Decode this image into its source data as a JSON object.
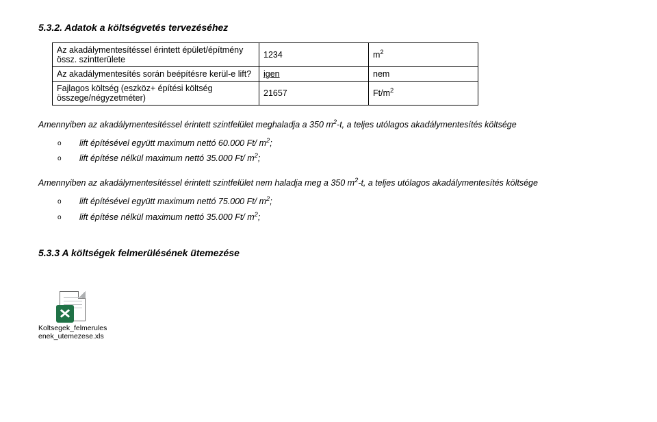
{
  "heading1": "5.3.2. Adatok a költségvetés tervezéséhez",
  "table": {
    "rows": [
      {
        "label": "Az akadálymentesítéssel érintett épület/építmény össz. szintterülete",
        "v1": "1234",
        "v2": "m",
        "v2sup": "2"
      },
      {
        "label": "Az akadálymentesítés során beépítésre kerül-e lift?",
        "v1": "igen",
        "v1_underline": true,
        "v2": "nem"
      },
      {
        "label": "Fajlagos költség (eszköz+ építési költség összege/négyzetméter)",
        "v1": "21657",
        "v2": "Ft/m",
        "v2sup": "2"
      }
    ]
  },
  "para1_a": "Amennyiben az akadálymentesítéssel érintett szintfelület meghaladja a 350 m",
  "para1_b": "-t, a teljes utólagos akadálymentesítés költsége",
  "bullets1": [
    {
      "t": "lift építésével együtt maximum nettó 60.000 Ft/ m",
      "sup": "2",
      "tail": ";"
    },
    {
      "t": "lift építése nélkül maximum nettó 35.000 Ft/ m",
      "sup": "2",
      "tail": ";"
    }
  ],
  "para2_a": "Amennyiben az akadálymentesítéssel érintett szintfelület nem haladja meg a 350 m",
  "para2_b": "-t, a teljes utólagos akadálymentesítés költsége",
  "bullets2": [
    {
      "t": "lift építésével együtt maximum nettó 75.000 Ft/ m",
      "sup": "2",
      "tail": ";"
    },
    {
      "t": "lift építése nélkül maximum nettó 35.000 Ft/ m",
      "sup": "2",
      "tail": ";"
    }
  ],
  "heading2": "5.3.3 A költségek felmerülésének ütemezése",
  "file": {
    "line1": "Koltsegek_felmerules",
    "line2": "enek_utemezese.xls"
  }
}
